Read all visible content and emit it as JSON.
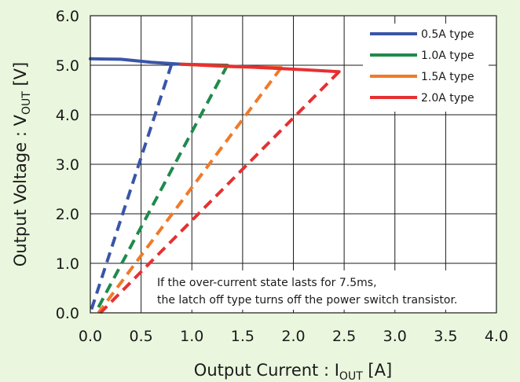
{
  "chart_data": {
    "type": "line",
    "title": "",
    "xlabel": {
      "main": "Output Current : I",
      "sub": "OUT",
      "unit": " [A]"
    },
    "ylabel": {
      "main": "Output Voltage : V",
      "sub": "OUT",
      "unit": " [V]"
    },
    "xlim": [
      0,
      4
    ],
    "ylim": [
      0,
      6
    ],
    "x_ticks": [
      "0.0",
      "0.5",
      "1.0",
      "1.5",
      "2.0",
      "2.5",
      "3.0",
      "3.5",
      "4.0"
    ],
    "y_ticks": [
      "0.0",
      "1.0",
      "2.0",
      "3.0",
      "4.0",
      "5.0",
      "6.0"
    ],
    "grid": true,
    "legend_position": "top-right",
    "series": [
      {
        "name": "0.5A type",
        "color": "#3a55a8",
        "solid": [
          [
            0.0,
            5.13
          ],
          [
            0.3,
            5.12
          ],
          [
            0.6,
            5.06
          ],
          [
            0.9,
            5.02
          ]
        ],
        "dashed": [
          [
            0.8,
            5.02
          ],
          [
            0.0,
            0.0
          ]
        ]
      },
      {
        "name": "1.0A type",
        "color": "#1f8a4c",
        "solid": [
          [
            0.9,
            5.02
          ],
          [
            1.35,
            5.0
          ]
        ],
        "dashed": [
          [
            1.35,
            5.0
          ],
          [
            0.05,
            0.0
          ]
        ]
      },
      {
        "name": "1.5A type",
        "color": "#f07a28",
        "solid": [
          [
            0.9,
            5.02
          ],
          [
            1.4,
            4.97
          ],
          [
            1.88,
            4.95
          ]
        ],
        "dashed": [
          [
            1.88,
            4.95
          ],
          [
            0.08,
            0.0
          ]
        ]
      },
      {
        "name": "2.0A type",
        "color": "#e63032",
        "solid": [
          [
            0.9,
            5.02
          ],
          [
            1.5,
            4.97
          ],
          [
            2.0,
            4.92
          ],
          [
            2.45,
            4.87
          ]
        ],
        "dashed": [
          [
            2.45,
            4.87
          ],
          [
            0.1,
            0.0
          ]
        ]
      }
    ],
    "annotation": [
      "If the over-current state lasts for 7.5ms,",
      "the latch off type turns off the power switch transistor."
    ]
  }
}
